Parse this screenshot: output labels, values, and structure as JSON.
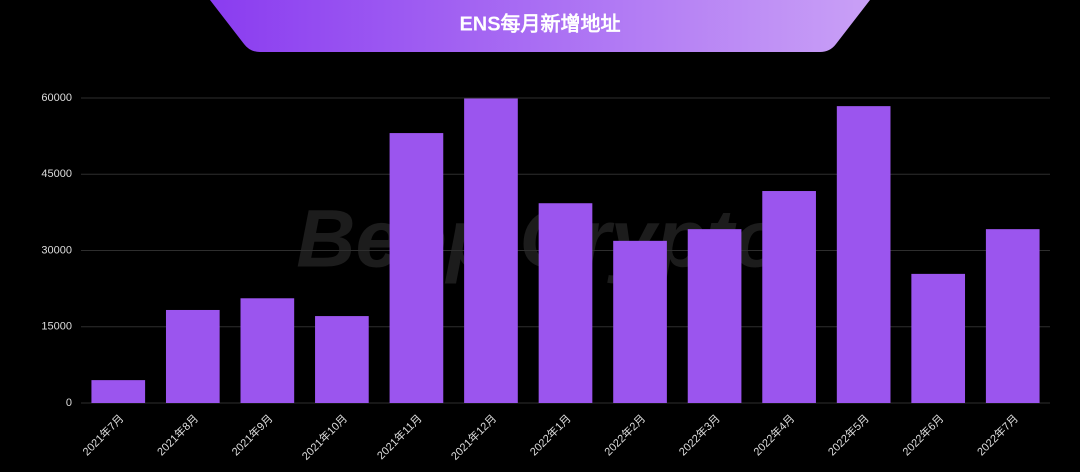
{
  "chart_data": {
    "type": "bar",
    "title": "ENS每月新增地址",
    "watermark": "Beep Crypto",
    "categories": [
      "2021年7月",
      "2021年8月",
      "2021年9月",
      "2021年10月",
      "2021年11月",
      "2021年12月",
      "2022年1月",
      "2022年2月",
      "2022年3月",
      "2022年4月",
      "2022年5月",
      "2022年6月",
      "2022年7月"
    ],
    "values": [
      4500,
      18300,
      20600,
      17100,
      53100,
      59900,
      39300,
      31900,
      34200,
      41700,
      58400,
      25400,
      34200
    ],
    "color": "#9b55ee",
    "ylim": [
      0,
      60000
    ],
    "yticks": [
      0,
      15000,
      30000,
      45000,
      60000
    ],
    "grid": true
  }
}
